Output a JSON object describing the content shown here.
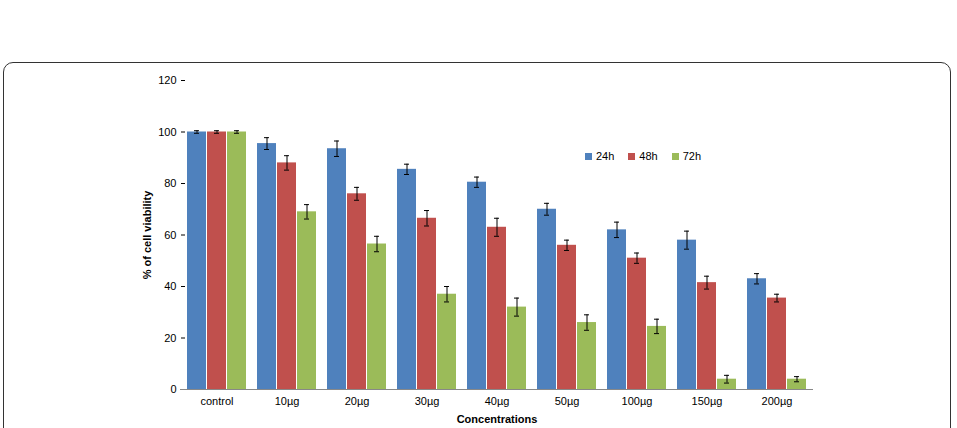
{
  "chart_data": {
    "type": "bar",
    "x_label": "Concentrations",
    "y_label": "% of cell viability",
    "categories": [
      "control",
      "10µg",
      "20µg",
      "30µg",
      "40µg",
      "50µg",
      "100µg",
      "150µg",
      "200µg"
    ],
    "series": [
      {
        "name": "24h",
        "color": "#4f81bd",
        "values": [
          100,
          95.5,
          93.5,
          85.5,
          80.5,
          70,
          62,
          58,
          43
        ],
        "errors": [
          0.5,
          2.3,
          3,
          2,
          2,
          2.3,
          3,
          3.5,
          2
        ]
      },
      {
        "name": "48h",
        "color": "#c0504d",
        "values": [
          100,
          88,
          76,
          66.5,
          63,
          56,
          51,
          41.5,
          35.5
        ],
        "errors": [
          0.5,
          2.8,
          2.5,
          3,
          3.5,
          2,
          2,
          2.5,
          1.5
        ]
      },
      {
        "name": "72h",
        "color": "#9bbb59",
        "values": [
          100,
          69,
          56.5,
          37,
          32,
          26,
          24.5,
          4,
          4
        ],
        "errors": [
          0.5,
          2.8,
          3,
          3,
          3.5,
          3,
          2.8,
          1.5,
          1
        ]
      }
    ],
    "ylim": [
      0,
      120
    ],
    "yticks": [
      0,
      20,
      40,
      60,
      80,
      100,
      120
    ],
    "grid": false,
    "legend": "top-right"
  }
}
